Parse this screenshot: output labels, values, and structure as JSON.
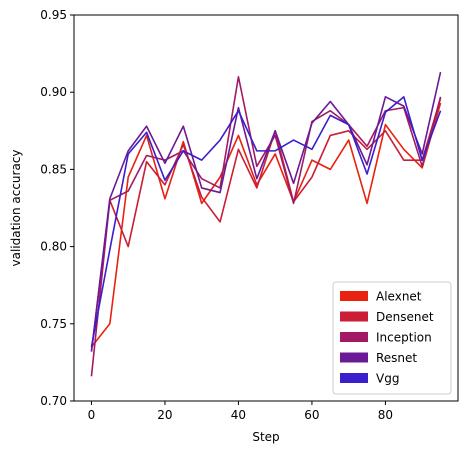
{
  "chart_data": {
    "type": "line",
    "xlabel": "Step",
    "ylabel": "validation accuracy",
    "xlim": [
      -4.75,
      99.75
    ],
    "ylim": [
      0.7,
      0.95
    ],
    "xticks": [
      0,
      20,
      40,
      60,
      80
    ],
    "xtick_labels": [
      "0",
      "20",
      "40",
      "60",
      "80"
    ],
    "yticks": [
      0.7,
      0.75,
      0.8,
      0.85,
      0.9,
      0.95
    ],
    "ytick_labels": [
      "0.70",
      "0.75",
      "0.80",
      "0.85",
      "0.90",
      "0.95"
    ],
    "grid": false,
    "legend_position": "bottom-right",
    "x": [
      0,
      5,
      10,
      15,
      20,
      25,
      30,
      35,
      40,
      45,
      50,
      55,
      60,
      65,
      70,
      75,
      80,
      85,
      90,
      95
    ],
    "series": [
      {
        "name": "Alexnet",
        "color": "#e8220f",
        "values": [
          0.735,
          0.75,
          0.845,
          0.872,
          0.831,
          0.868,
          0.828,
          0.845,
          0.872,
          0.84,
          0.86,
          0.829,
          0.856,
          0.85,
          0.869,
          0.828,
          0.879,
          0.863,
          0.851,
          0.893
        ]
      },
      {
        "name": "Densenet",
        "color": "#c91e36",
        "values": [
          0.732,
          0.83,
          0.8,
          0.855,
          0.84,
          0.866,
          0.832,
          0.816,
          0.863,
          0.838,
          0.875,
          0.829,
          0.845,
          0.872,
          0.875,
          0.863,
          0.875,
          0.856,
          0.856,
          0.896
        ]
      },
      {
        "name": "Inception",
        "color": "#a21a64",
        "values": [
          0.716,
          0.83,
          0.836,
          0.859,
          0.856,
          0.862,
          0.844,
          0.838,
          0.91,
          0.852,
          0.872,
          0.828,
          0.881,
          0.888,
          0.879,
          0.865,
          0.888,
          0.89,
          0.852,
          0.897
        ]
      },
      {
        "name": "Resnet",
        "color": "#6a1a97",
        "values": [
          0.732,
          0.831,
          0.862,
          0.878,
          0.854,
          0.878,
          0.838,
          0.835,
          0.89,
          0.844,
          0.875,
          0.841,
          0.88,
          0.894,
          0.879,
          0.853,
          0.897,
          0.891,
          0.86,
          0.913
        ]
      },
      {
        "name": "Vgg",
        "color": "#3a1fcc",
        "values": [
          0.735,
          0.798,
          0.86,
          0.874,
          0.843,
          0.862,
          0.856,
          0.869,
          0.888,
          0.862,
          0.862,
          0.869,
          0.863,
          0.885,
          0.879,
          0.847,
          0.887,
          0.897,
          0.856,
          0.888
        ]
      }
    ]
  }
}
